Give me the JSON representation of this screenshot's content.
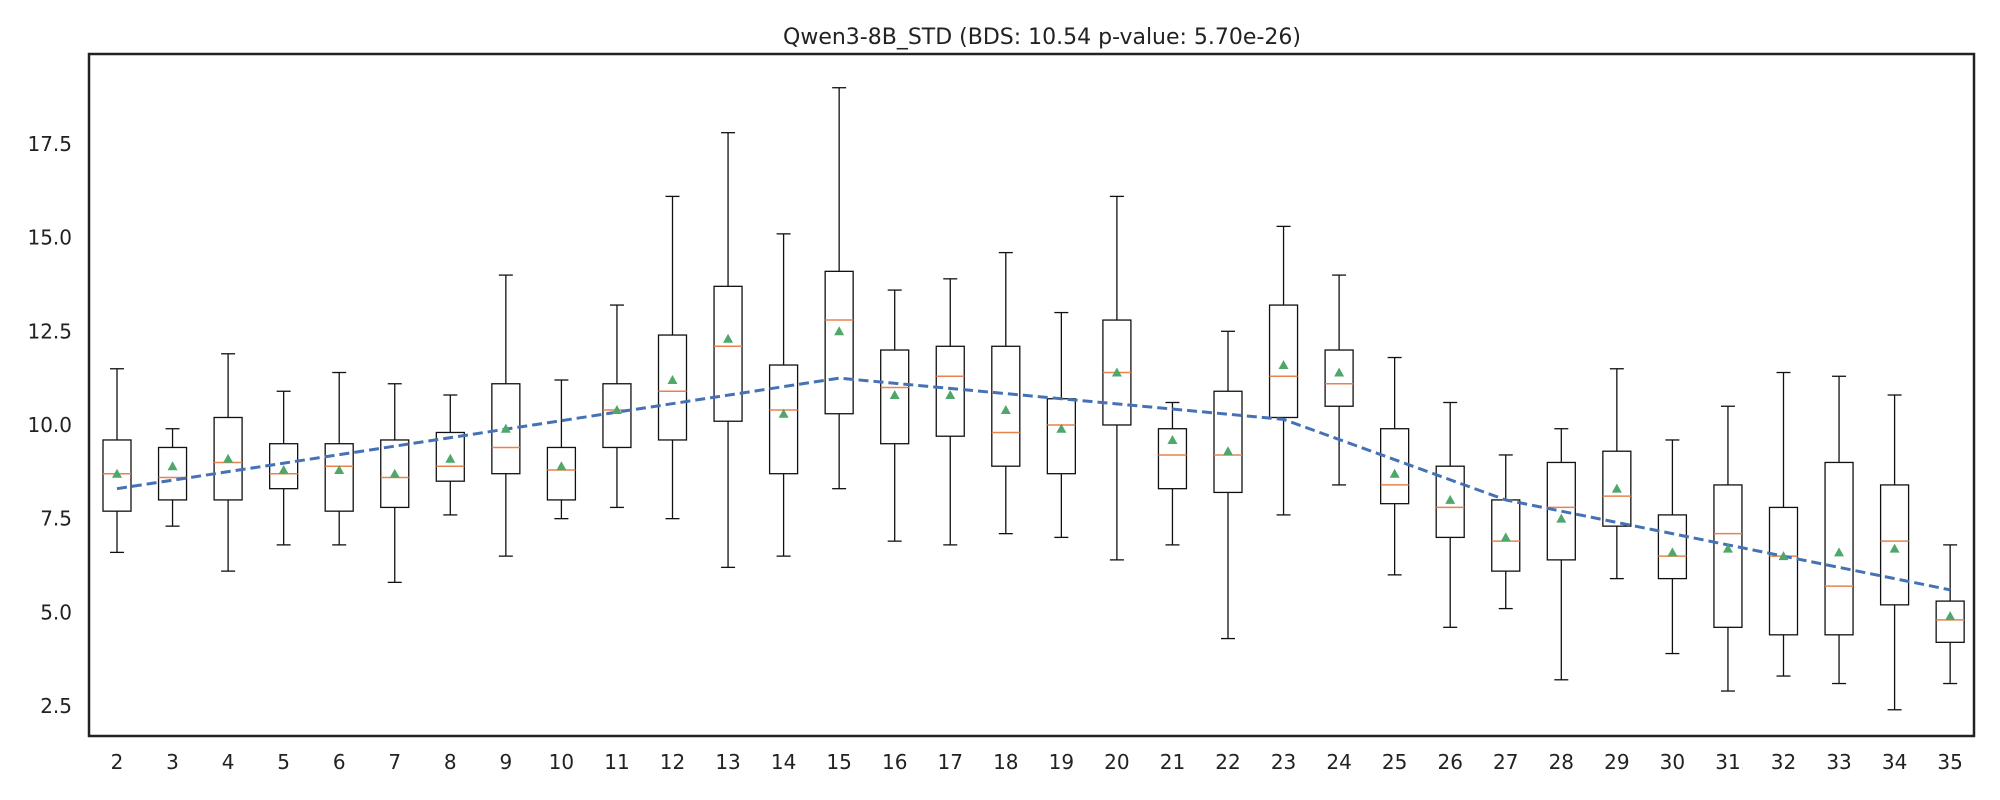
{
  "chart_data": {
    "type": "box",
    "title": "Qwen3-8B_STD (BDS: 10.54 p-value: 5.70e-26)",
    "xlabel": "",
    "ylabel": "",
    "ylim": [
      1.7,
      19.9
    ],
    "yticks": [
      2.5,
      5.0,
      7.5,
      10.0,
      12.5,
      15.0,
      17.5
    ],
    "ytick_labels": [
      "2.5",
      "5.0",
      "7.5",
      "10.0",
      "12.5",
      "15.0",
      "17.5"
    ],
    "grid": false,
    "colors": {
      "median": "#e8834f",
      "mean_marker": "#4fa86a",
      "trend": "#4472b4",
      "box": "#111111"
    },
    "categories": [
      "2",
      "3",
      "4",
      "5",
      "6",
      "7",
      "8",
      "9",
      "10",
      "11",
      "12",
      "13",
      "14",
      "15",
      "16",
      "17",
      "18",
      "19",
      "20",
      "21",
      "22",
      "23",
      "24",
      "25",
      "26",
      "27",
      "28",
      "29",
      "30",
      "31",
      "32",
      "33",
      "34",
      "35"
    ],
    "boxes": [
      {
        "whisker_low": 6.6,
        "q1": 7.7,
        "median": 8.7,
        "q3": 9.6,
        "whisker_high": 11.5,
        "mean": 8.7
      },
      {
        "whisker_low": 7.3,
        "q1": 8.0,
        "median": 8.6,
        "q3": 9.4,
        "whisker_high": 9.9,
        "mean": 8.9
      },
      {
        "whisker_low": 6.1,
        "q1": 8.0,
        "median": 9.0,
        "q3": 10.2,
        "whisker_high": 11.9,
        "mean": 9.1
      },
      {
        "whisker_low": 6.8,
        "q1": 8.3,
        "median": 8.7,
        "q3": 9.5,
        "whisker_high": 10.9,
        "mean": 8.8
      },
      {
        "whisker_low": 6.8,
        "q1": 7.7,
        "median": 8.9,
        "q3": 9.5,
        "whisker_high": 11.4,
        "mean": 8.8
      },
      {
        "whisker_low": 5.8,
        "q1": 7.8,
        "median": 8.6,
        "q3": 9.6,
        "whisker_high": 11.1,
        "mean": 8.7
      },
      {
        "whisker_low": 7.6,
        "q1": 8.5,
        "median": 8.9,
        "q3": 9.8,
        "whisker_high": 10.8,
        "mean": 9.1
      },
      {
        "whisker_low": 6.5,
        "q1": 8.7,
        "median": 9.4,
        "q3": 11.1,
        "whisker_high": 14.0,
        "mean": 9.9
      },
      {
        "whisker_low": 7.5,
        "q1": 8.0,
        "median": 8.8,
        "q3": 9.4,
        "whisker_high": 11.2,
        "mean": 8.9
      },
      {
        "whisker_low": 7.8,
        "q1": 9.4,
        "median": 10.4,
        "q3": 11.1,
        "whisker_high": 13.2,
        "mean": 10.4
      },
      {
        "whisker_low": 7.5,
        "q1": 9.6,
        "median": 10.9,
        "q3": 12.4,
        "whisker_high": 16.1,
        "mean": 11.2
      },
      {
        "whisker_low": 6.2,
        "q1": 10.1,
        "median": 12.1,
        "q3": 13.7,
        "whisker_high": 17.8,
        "mean": 12.3
      },
      {
        "whisker_low": 6.5,
        "q1": 8.7,
        "median": 10.4,
        "q3": 11.6,
        "whisker_high": 15.1,
        "mean": 10.3
      },
      {
        "whisker_low": 8.3,
        "q1": 10.3,
        "median": 12.8,
        "q3": 14.1,
        "whisker_high": 19.0,
        "mean": 12.5
      },
      {
        "whisker_low": 6.9,
        "q1": 9.5,
        "median": 11.0,
        "q3": 12.0,
        "whisker_high": 13.6,
        "mean": 10.8
      },
      {
        "whisker_low": 6.8,
        "q1": 9.7,
        "median": 11.3,
        "q3": 12.1,
        "whisker_high": 13.9,
        "mean": 10.8
      },
      {
        "whisker_low": 7.1,
        "q1": 8.9,
        "median": 9.8,
        "q3": 12.1,
        "whisker_high": 14.6,
        "mean": 10.4
      },
      {
        "whisker_low": 7.0,
        "q1": 8.7,
        "median": 10.0,
        "q3": 10.7,
        "whisker_high": 13.0,
        "mean": 9.9
      },
      {
        "whisker_low": 6.4,
        "q1": 10.0,
        "median": 11.4,
        "q3": 12.8,
        "whisker_high": 16.1,
        "mean": 11.4
      },
      {
        "whisker_low": 6.8,
        "q1": 8.3,
        "median": 9.2,
        "q3": 9.9,
        "whisker_high": 10.6,
        "mean": 9.6
      },
      {
        "whisker_low": 4.3,
        "q1": 8.2,
        "median": 9.2,
        "q3": 10.9,
        "whisker_high": 12.5,
        "mean": 9.3
      },
      {
        "whisker_low": 7.6,
        "q1": 10.2,
        "median": 11.3,
        "q3": 13.2,
        "whisker_high": 15.3,
        "mean": 11.6
      },
      {
        "whisker_low": 8.4,
        "q1": 10.5,
        "median": 11.1,
        "q3": 12.0,
        "whisker_high": 14.0,
        "mean": 11.4
      },
      {
        "whisker_low": 6.0,
        "q1": 7.9,
        "median": 8.4,
        "q3": 9.9,
        "whisker_high": 11.8,
        "mean": 8.7
      },
      {
        "whisker_low": 4.6,
        "q1": 7.0,
        "median": 7.8,
        "q3": 8.9,
        "whisker_high": 10.6,
        "mean": 8.0
      },
      {
        "whisker_low": 5.1,
        "q1": 6.1,
        "median": 6.9,
        "q3": 8.0,
        "whisker_high": 9.2,
        "mean": 7.0
      },
      {
        "whisker_low": 3.2,
        "q1": 6.4,
        "median": 7.8,
        "q3": 9.0,
        "whisker_high": 9.9,
        "mean": 7.5
      },
      {
        "whisker_low": 5.9,
        "q1": 7.3,
        "median": 8.1,
        "q3": 9.3,
        "whisker_high": 11.5,
        "mean": 8.3
      },
      {
        "whisker_low": 3.9,
        "q1": 5.9,
        "median": 6.5,
        "q3": 7.6,
        "whisker_high": 9.6,
        "mean": 6.6
      },
      {
        "whisker_low": 2.9,
        "q1": 4.6,
        "median": 7.1,
        "q3": 8.4,
        "whisker_high": 10.5,
        "mean": 6.7
      },
      {
        "whisker_low": 3.3,
        "q1": 4.4,
        "median": 6.5,
        "q3": 7.8,
        "whisker_high": 11.4,
        "mean": 6.5
      },
      {
        "whisker_low": 3.1,
        "q1": 4.4,
        "median": 5.7,
        "q3": 9.0,
        "whisker_high": 11.3,
        "mean": 6.6
      },
      {
        "whisker_low": 2.4,
        "q1": 5.2,
        "median": 6.9,
        "q3": 8.4,
        "whisker_high": 10.8,
        "mean": 6.7
      },
      {
        "whisker_low": 3.1,
        "q1": 4.2,
        "median": 4.8,
        "q3": 5.3,
        "whisker_high": 6.8,
        "mean": 4.9
      }
    ],
    "trend_line": {
      "style": "dashed",
      "x": [
        "2",
        "15",
        "23",
        "27",
        "35"
      ],
      "y": [
        8.3,
        11.25,
        10.15,
        8.0,
        5.6
      ]
    }
  }
}
